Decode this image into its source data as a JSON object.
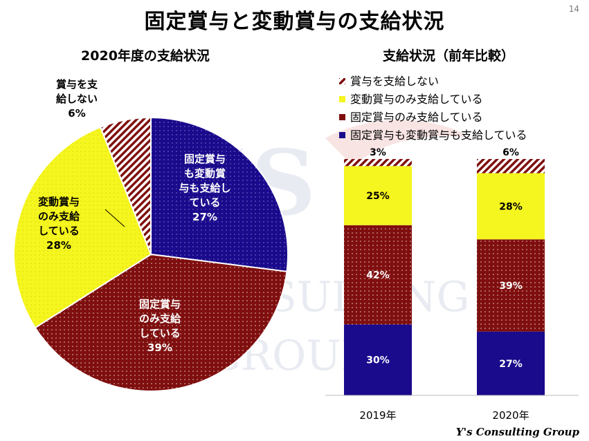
{
  "slide": {
    "title": "固定賞与と変動賞与の支給状況",
    "page_number": "14",
    "footer_brand": "Y's Consulting Group"
  },
  "colors": {
    "fixed_and_variable": "#1a0a8c",
    "fixed_only": "#7f0f0f",
    "variable_only": "#f5f51f",
    "none": "#7f0f0f"
  },
  "chart_data": [
    {
      "type": "pie",
      "title": "2020年度の支給状況",
      "slices": [
        {
          "key": "both",
          "label_lines": [
            "固定賞与",
            "も変動賞",
            "与も支給し",
            "ている"
          ],
          "value": 27,
          "value_text": "27%"
        },
        {
          "key": "fixed",
          "label_lines": [
            "固定賞与",
            "のみ支給",
            "している"
          ],
          "value": 39,
          "value_text": "39%"
        },
        {
          "key": "variable",
          "label_lines": [
            "変動賞与",
            "のみ支給",
            "している"
          ],
          "value": 28,
          "value_text": "28%"
        },
        {
          "key": "none",
          "label_lines": [
            "賞与を支",
            "給しない"
          ],
          "value": 6,
          "value_text": "6%"
        }
      ]
    },
    {
      "type": "bar",
      "stacked": true,
      "title": "支給状況（前年比較）",
      "categories": [
        "2019年",
        "2020年"
      ],
      "ylim": [
        0,
        100
      ],
      "legend_position": "top",
      "series": [
        {
          "key": "both",
          "name": "固定賞与も変動賞与も支給している",
          "values": [
            30,
            27
          ],
          "labels": [
            "30%",
            "27%"
          ]
        },
        {
          "key": "fixed",
          "name": "固定賞与のみ支給している",
          "values": [
            42,
            39
          ],
          "labels": [
            "42%",
            "39%"
          ]
        },
        {
          "key": "variable",
          "name": "変動賞与のみ支給している",
          "values": [
            25,
            28
          ],
          "labels": [
            "25%",
            "28%"
          ]
        },
        {
          "key": "none",
          "name": "賞与を支給しない",
          "values": [
            3,
            6
          ],
          "labels": [
            "3%",
            "6%"
          ]
        }
      ]
    }
  ],
  "watermark": {
    "line1": "Y'S",
    "line2": "CONSULTING",
    "line3": "GROUP"
  }
}
